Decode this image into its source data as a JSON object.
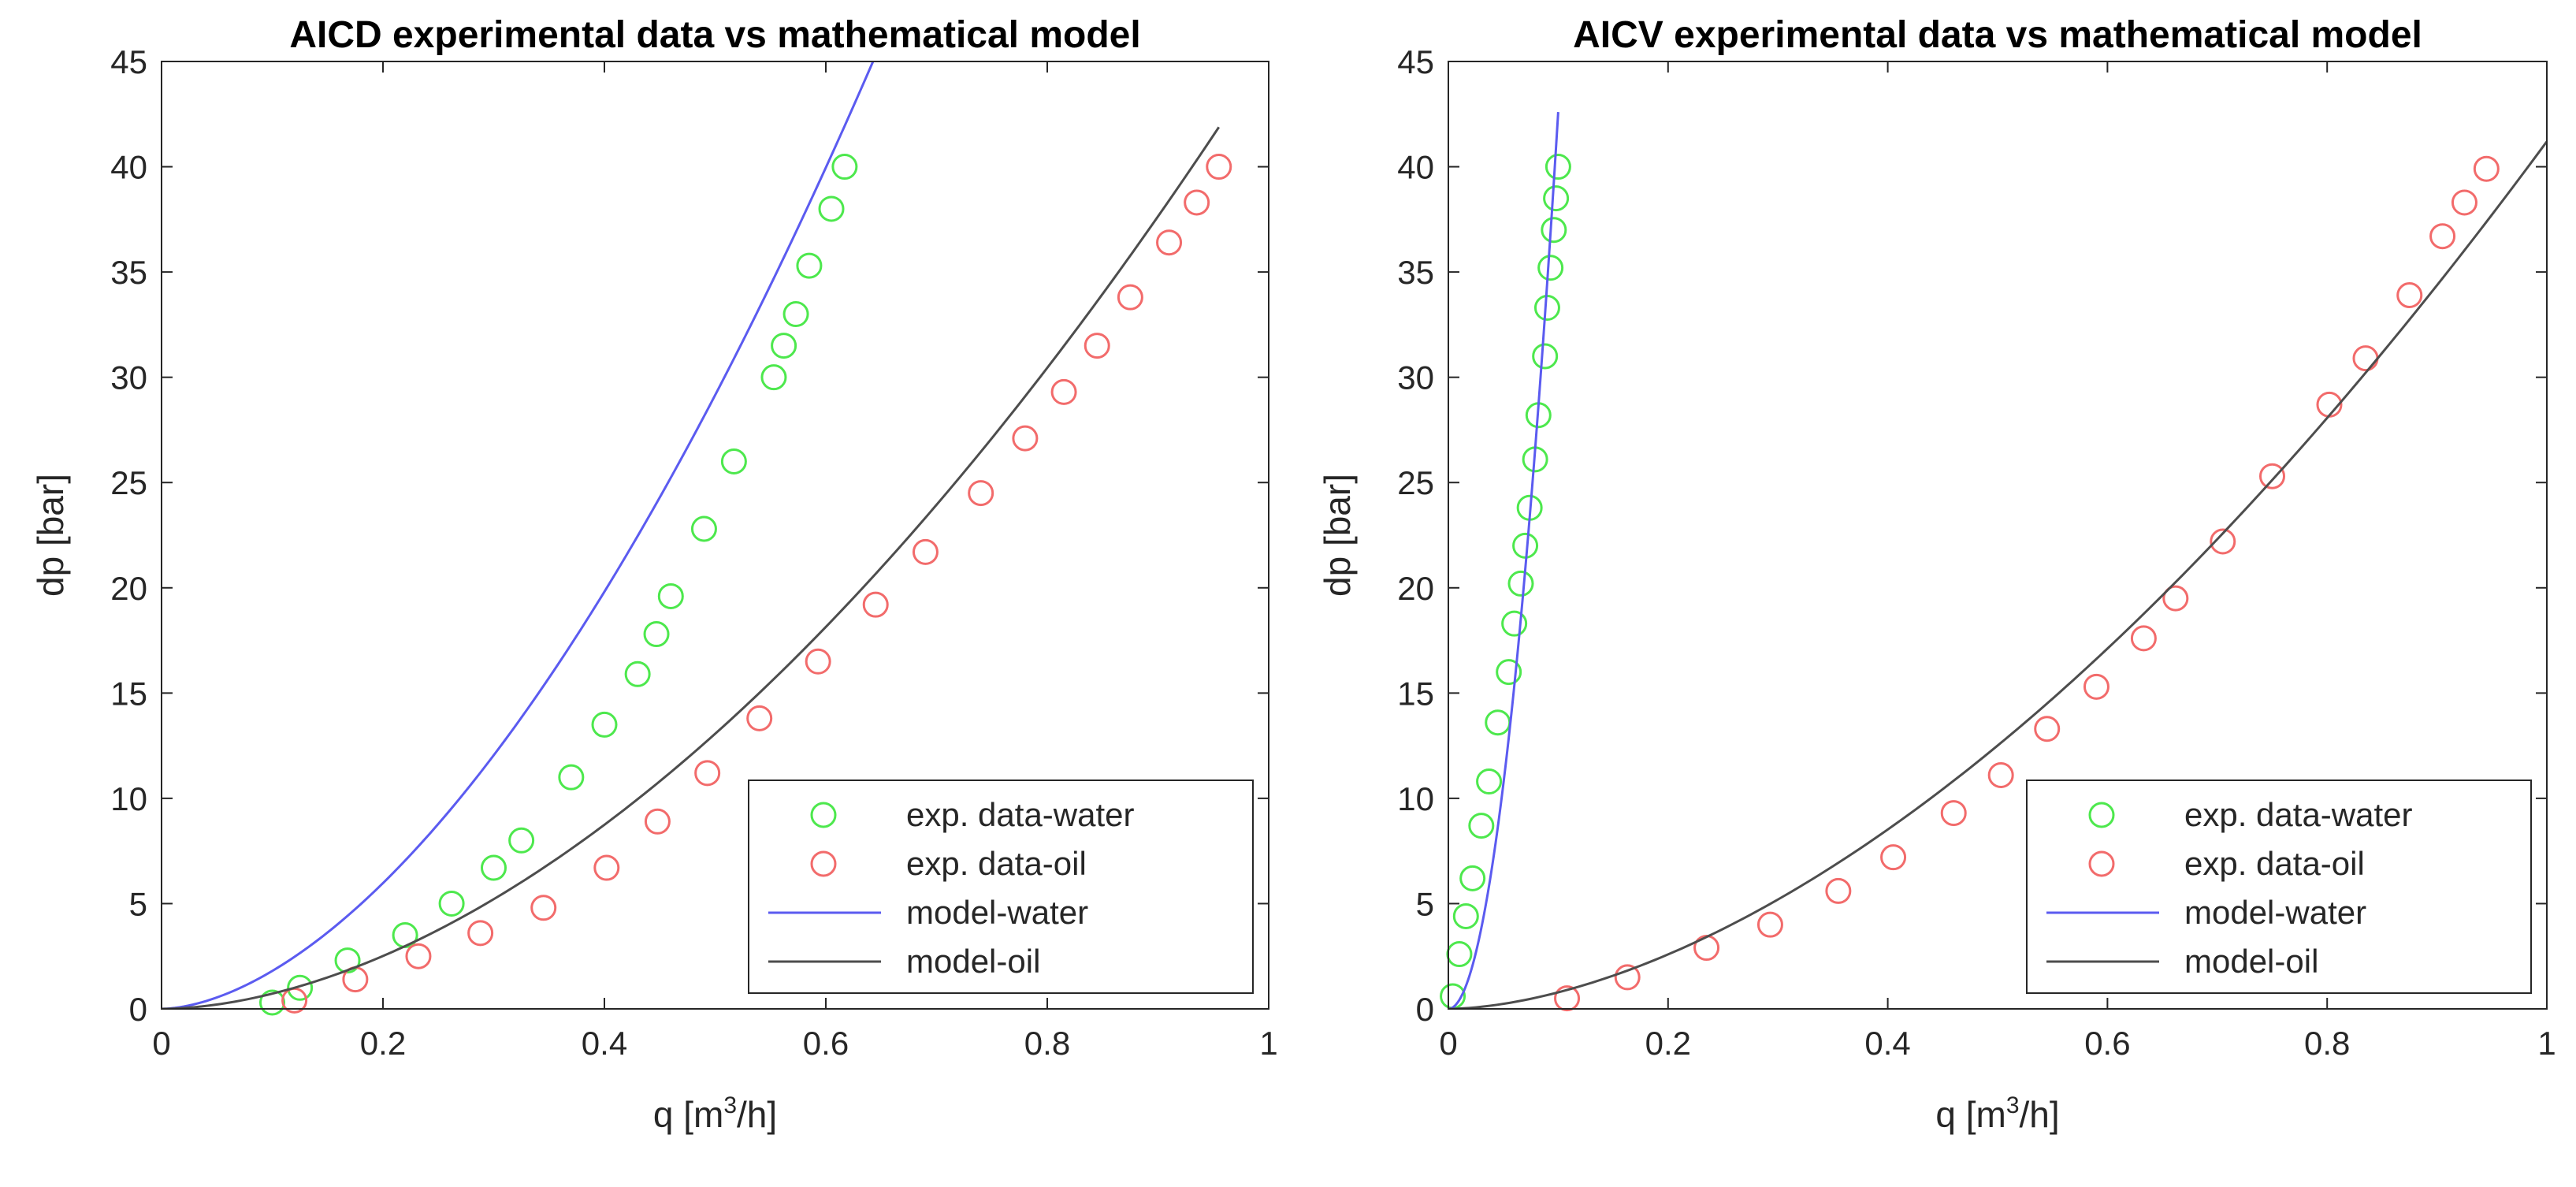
{
  "chart_data": [
    {
      "type": "scatter",
      "title": "AICD experimental data vs mathematical model",
      "xlabel_main": "q [m",
      "xlabel_sup": "3",
      "xlabel_tail": "/h]",
      "ylabel": "dp [bar]",
      "xlim": [
        0,
        1
      ],
      "ylim": [
        0,
        45
      ],
      "xticks": [
        0,
        0.2,
        0.4,
        0.6,
        0.8,
        1
      ],
      "xtick_labels": [
        "0",
        "0.2",
        "0.4",
        "0.6",
        "0.8",
        "1"
      ],
      "yticks": [
        0,
        5,
        10,
        15,
        20,
        25,
        30,
        35,
        40,
        45
      ],
      "ytick_labels": [
        "0",
        "5",
        "10",
        "15",
        "20",
        "25",
        "30",
        "35",
        "40",
        "45"
      ],
      "legend": [
        {
          "label": "exp. data-water",
          "kind": "marker",
          "color": "#4de84d"
        },
        {
          "label": "exp. data-oil",
          "kind": "marker",
          "color": "#f26b6b"
        },
        {
          "label": "model-water",
          "kind": "line",
          "color": "#5b5bf0"
        },
        {
          "label": "model-oil",
          "kind": "line",
          "color": "#4d4d4d"
        }
      ],
      "legend_position": "bottom-right",
      "series": [
        {
          "name": "exp. data-water",
          "kind": "marker",
          "color": "#4de84d",
          "x": [
            0.1,
            0.125,
            0.168,
            0.22,
            0.262,
            0.3,
            0.325,
            0.37,
            0.4,
            0.43,
            0.447,
            0.46,
            0.49,
            0.517,
            0.553,
            0.562,
            0.573,
            0.585,
            0.605,
            0.617
          ],
          "y": [
            0.3,
            1.0,
            2.3,
            3.5,
            5.0,
            6.7,
            8.0,
            11.0,
            13.5,
            15.9,
            17.8,
            19.6,
            22.8,
            26.0,
            30.0,
            31.5,
            33.0,
            35.3,
            38.0,
            40.0
          ]
        },
        {
          "name": "exp. data-oil",
          "kind": "marker",
          "color": "#f26b6b",
          "x": [
            0.12,
            0.175,
            0.232,
            0.288,
            0.345,
            0.402,
            0.448,
            0.493,
            0.54,
            0.593,
            0.645,
            0.69,
            0.74,
            0.78,
            0.815,
            0.845,
            0.875,
            0.91,
            0.935,
            0.955
          ],
          "y": [
            0.4,
            1.4,
            2.5,
            3.6,
            4.8,
            6.7,
            8.9,
            11.2,
            13.8,
            16.5,
            19.2,
            21.7,
            24.5,
            27.1,
            29.3,
            31.5,
            33.8,
            36.4,
            38.3,
            40.0
          ]
        },
        {
          "name": "model-water",
          "kind": "line",
          "color": "#5b5bf0",
          "a": 96.7,
          "b": 1.73,
          "x_range": [
            0,
            0.645
          ]
        },
        {
          "name": "model-oil",
          "kind": "line",
          "color": "#4d4d4d",
          "a": 45.5,
          "b": 1.8,
          "x_range": [
            0,
            0.955
          ]
        }
      ]
    },
    {
      "type": "scatter",
      "title": "AICV experimental data vs mathematical model",
      "xlabel_main": "q [m",
      "xlabel_sup": "3",
      "xlabel_tail": "/h]",
      "ylabel": "dp [bar]",
      "xlim": [
        0,
        1
      ],
      "ylim": [
        0,
        45
      ],
      "xticks": [
        0,
        0.2,
        0.4,
        0.6,
        0.8,
        1
      ],
      "xtick_labels": [
        "0",
        "0.2",
        "0.4",
        "0.6",
        "0.8",
        "1"
      ],
      "yticks": [
        0,
        5,
        10,
        15,
        20,
        25,
        30,
        35,
        40,
        45
      ],
      "ytick_labels": [
        "0",
        "5",
        "10",
        "15",
        "20",
        "25",
        "30",
        "35",
        "40",
        "45"
      ],
      "legend": [
        {
          "label": "exp. data-water",
          "kind": "marker",
          "color": "#4de84d"
        },
        {
          "label": "exp. data-oil",
          "kind": "marker",
          "color": "#f26b6b"
        },
        {
          "label": "model-water",
          "kind": "line",
          "color": "#5b5bf0"
        },
        {
          "label": "model-oil",
          "kind": "line",
          "color": "#4d4d4d"
        }
      ],
      "legend_position": "bottom-right",
      "series": [
        {
          "name": "exp. data-water",
          "kind": "marker",
          "color": "#4de84d",
          "x": [
            0.004,
            0.01,
            0.016,
            0.022,
            0.03,
            0.037,
            0.045,
            0.055,
            0.06,
            0.066,
            0.07,
            0.074,
            0.079,
            0.082,
            0.088,
            0.09,
            0.093,
            0.096,
            0.098,
            0.1
          ],
          "y": [
            0.6,
            2.6,
            4.4,
            6.2,
            8.7,
            10.8,
            13.6,
            16.0,
            18.3,
            20.2,
            22.0,
            23.8,
            26.1,
            28.2,
            31.0,
            33.3,
            35.2,
            37.0,
            38.5,
            40.0
          ]
        },
        {
          "name": "exp. data-oil",
          "kind": "marker",
          "color": "#f26b6b",
          "x": [
            0.108,
            0.163,
            0.235,
            0.293,
            0.355,
            0.405,
            0.46,
            0.503,
            0.545,
            0.59,
            0.633,
            0.662,
            0.705,
            0.75,
            0.802,
            0.835,
            0.875,
            0.905,
            0.925,
            0.945
          ],
          "y": [
            0.5,
            1.5,
            2.9,
            4.0,
            5.6,
            7.2,
            9.3,
            11.1,
            13.3,
            15.3,
            17.6,
            19.5,
            22.2,
            25.3,
            28.7,
            30.9,
            33.9,
            36.7,
            38.3,
            39.9
          ]
        },
        {
          "name": "model-water",
          "kind": "line",
          "color": "#5b5bf0",
          "a": 4260,
          "b": 2.0,
          "x_range": [
            0,
            0.1
          ]
        },
        {
          "name": "model-oil",
          "kind": "line",
          "color": "#4d4d4d",
          "a": 41.2,
          "b": 1.72,
          "x_range": [
            0,
            1.0
          ]
        }
      ]
    }
  ]
}
